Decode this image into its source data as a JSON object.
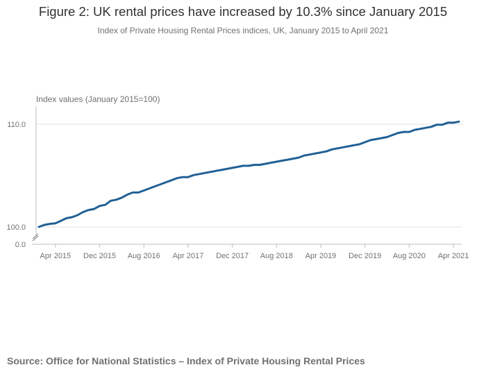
{
  "title": "Figure 2: UK rental prices have increased by 10.3% since January 2015",
  "subtitle": "Index of Private Housing Rental Prices indices, UK, January 2015 to April 2021",
  "source": "Source: Office for National Statistics – Index of Private Housing Rental Prices",
  "colors": {
    "line": "#206095",
    "grid": "#e0e0e0",
    "axis": "#bebebe",
    "text": "#707071"
  },
  "chart_data": {
    "type": "line",
    "title": "Figure 2: UK rental prices have increased by 10.3% since January 2015",
    "subtitle": "Index of Private Housing Rental Prices indices, UK, January 2015 to April 2021",
    "ylabel": "Index values (January 2015=100)",
    "xlabel": "",
    "ylim": [
      100,
      110
    ],
    "y_axis_break": true,
    "y_ticks": [
      "0.0",
      "100.0",
      "110.0"
    ],
    "x_ticks": [
      "Apr 2015",
      "Dec 2015",
      "Aug 2016",
      "Apr 2017",
      "Dec 2017",
      "Aug 2018",
      "Apr 2019",
      "Dec 2019",
      "Aug 2020",
      "Apr 2021"
    ],
    "grid": true,
    "x_start": "2015-01",
    "x_end": "2021-04",
    "series": [
      {
        "values": [
          100.0,
          100.2,
          100.3,
          100.35,
          100.6,
          100.85,
          100.95,
          101.15,
          101.45,
          101.65,
          101.75,
          102.05,
          102.15,
          102.55,
          102.65,
          102.85,
          103.15,
          103.35,
          103.35,
          103.55,
          103.75,
          103.95,
          104.15,
          104.35,
          104.55,
          104.75,
          104.85,
          104.85,
          105.05,
          105.15,
          105.25,
          105.35,
          105.45,
          105.55,
          105.65,
          105.75,
          105.85,
          105.95,
          105.95,
          106.05,
          106.05,
          106.15,
          106.25,
          106.35,
          106.45,
          106.55,
          106.65,
          106.75,
          106.95,
          107.05,
          107.15,
          107.25,
          107.35,
          107.55,
          107.65,
          107.75,
          107.85,
          107.95,
          108.05,
          108.25,
          108.45,
          108.55,
          108.65,
          108.75,
          108.95,
          109.15,
          109.25,
          109.25,
          109.45,
          109.55,
          109.65,
          109.75,
          109.95,
          109.95,
          110.15,
          110.15,
          110.25
        ]
      }
    ]
  }
}
